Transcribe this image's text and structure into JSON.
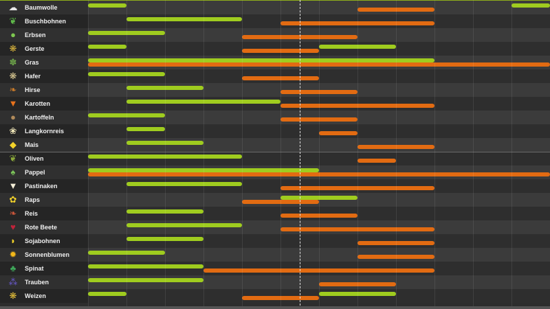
{
  "colors": {
    "sow": "#9fcc1f",
    "harvest": "#e26b12"
  },
  "months_total": 12,
  "today_month_position": 5.5,
  "divider_after_row": 10,
  "crops": [
    {
      "id": "baumwolle",
      "name": "Baumwolle",
      "icon": "cotton-icon",
      "glyph": "☁",
      "color": "#e8e8e8",
      "sow": [
        [
          0,
          1
        ],
        [
          11,
          12
        ]
      ],
      "harvest": [
        [
          7,
          9
        ]
      ]
    },
    {
      "id": "buschbohnen",
      "name": "Buschbohnen",
      "icon": "bean-icon",
      "glyph": "❦",
      "color": "#5fb84a",
      "sow": [
        [
          1,
          4
        ]
      ],
      "harvest": [
        [
          5,
          9
        ]
      ]
    },
    {
      "id": "erbsen",
      "name": "Erbsen",
      "icon": "pea-icon",
      "glyph": "●",
      "color": "#7ec850",
      "sow": [
        [
          0,
          2
        ]
      ],
      "harvest": [
        [
          4,
          7
        ]
      ]
    },
    {
      "id": "gerste",
      "name": "Gerste",
      "icon": "barley-icon",
      "glyph": "❋",
      "color": "#d9b43c",
      "sow": [
        [
          0,
          1
        ],
        [
          6,
          8
        ]
      ],
      "harvest": [
        [
          4,
          6
        ]
      ]
    },
    {
      "id": "gras",
      "name": "Gras",
      "icon": "grass-icon",
      "glyph": "✽",
      "color": "#6fa84a",
      "sow": [
        [
          0,
          9
        ]
      ],
      "harvest": [
        [
          0,
          12
        ]
      ]
    },
    {
      "id": "hafer",
      "name": "Hafer",
      "icon": "oat-icon",
      "glyph": "❋",
      "color": "#e0cf96",
      "sow": [
        [
          0,
          2
        ]
      ],
      "harvest": [
        [
          4,
          6
        ]
      ]
    },
    {
      "id": "hirse",
      "name": "Hirse",
      "icon": "millet-icon",
      "glyph": "❧",
      "color": "#c87a2a",
      "sow": [
        [
          1,
          3
        ]
      ],
      "harvest": [
        [
          5,
          7
        ]
      ]
    },
    {
      "id": "karotten",
      "name": "Karotten",
      "icon": "carrot-icon",
      "glyph": "▼",
      "color": "#e8731c",
      "sow": [
        [
          1,
          5
        ]
      ],
      "harvest": [
        [
          5,
          9
        ]
      ]
    },
    {
      "id": "kartoffeln",
      "name": "Kartoffeln",
      "icon": "potato-icon",
      "glyph": "●",
      "color": "#b08a5a",
      "sow": [
        [
          0,
          2
        ]
      ],
      "harvest": [
        [
          5,
          7
        ]
      ]
    },
    {
      "id": "langkornreis",
      "name": "Langkornreis",
      "icon": "long-rice-icon",
      "glyph": "❀",
      "color": "#f0e6b8",
      "sow": [
        [
          1,
          2
        ]
      ],
      "harvest": [
        [
          6,
          7
        ]
      ]
    },
    {
      "id": "mais",
      "name": "Mais",
      "icon": "corn-icon",
      "glyph": "◆",
      "color": "#f2d22a",
      "sow": [
        [
          1,
          3
        ]
      ],
      "harvest": [
        [
          7,
          9
        ]
      ]
    },
    {
      "id": "oliven",
      "name": "Oliven",
      "icon": "olive-icon",
      "glyph": "❦",
      "color": "#8aa83a",
      "sow": [
        [
          0,
          4
        ]
      ],
      "harvest": [
        [
          7,
          8
        ]
      ]
    },
    {
      "id": "pappel",
      "name": "Pappel",
      "icon": "poplar-icon",
      "glyph": "♠",
      "color": "#7cc45a",
      "sow": [
        [
          0,
          6
        ]
      ],
      "harvest": [
        [
          0,
          12
        ]
      ]
    },
    {
      "id": "pastinaken",
      "name": "Pastinaken",
      "icon": "parsnip-icon",
      "glyph": "▼",
      "color": "#f4efd8",
      "sow": [
        [
          1,
          4
        ]
      ],
      "harvest": [
        [
          5,
          9
        ]
      ]
    },
    {
      "id": "raps",
      "name": "Raps",
      "icon": "canola-icon",
      "glyph": "✿",
      "color": "#f2d22a",
      "sow": [
        [
          5,
          7
        ]
      ],
      "harvest": [
        [
          4,
          6
        ]
      ]
    },
    {
      "id": "reis",
      "name": "Reis",
      "icon": "rice-icon",
      "glyph": "❧",
      "color": "#c8553a",
      "sow": [
        [
          1,
          3
        ]
      ],
      "harvest": [
        [
          5,
          7
        ]
      ]
    },
    {
      "id": "rote-beete",
      "name": "Rote Beete",
      "icon": "beetroot-icon",
      "glyph": "♥",
      "color": "#c0233a",
      "sow": [
        [
          1,
          4
        ]
      ],
      "harvest": [
        [
          5,
          9
        ]
      ]
    },
    {
      "id": "sojabohnen",
      "name": "Sojabohnen",
      "icon": "soybean-icon",
      "glyph": "◗",
      "color": "#f2d22a",
      "sow": [
        [
          1,
          3
        ]
      ],
      "harvest": [
        [
          7,
          9
        ]
      ]
    },
    {
      "id": "sonnenblumen",
      "name": "Sonnenblumen",
      "icon": "sunflower-icon",
      "glyph": "✹",
      "color": "#f2b81a",
      "sow": [
        [
          0,
          2
        ]
      ],
      "harvest": [
        [
          7,
          9
        ]
      ]
    },
    {
      "id": "spinat",
      "name": "Spinat",
      "icon": "spinach-icon",
      "glyph": "♣",
      "color": "#3fa85a",
      "sow": [
        [
          0,
          3
        ]
      ],
      "harvest": [
        [
          3,
          9
        ]
      ]
    },
    {
      "id": "trauben",
      "name": "Trauben",
      "icon": "grapes-icon",
      "glyph": "⁂",
      "color": "#6a5ad0",
      "sow": [
        [
          0,
          3
        ]
      ],
      "harvest": [
        [
          6,
          8
        ]
      ]
    },
    {
      "id": "weizen",
      "name": "Weizen",
      "icon": "wheat-icon",
      "glyph": "❋",
      "color": "#e8c23a",
      "sow": [
        [
          0,
          1
        ],
        [
          6,
          8
        ]
      ],
      "harvest": [
        [
          4,
          6
        ]
      ]
    }
  ]
}
